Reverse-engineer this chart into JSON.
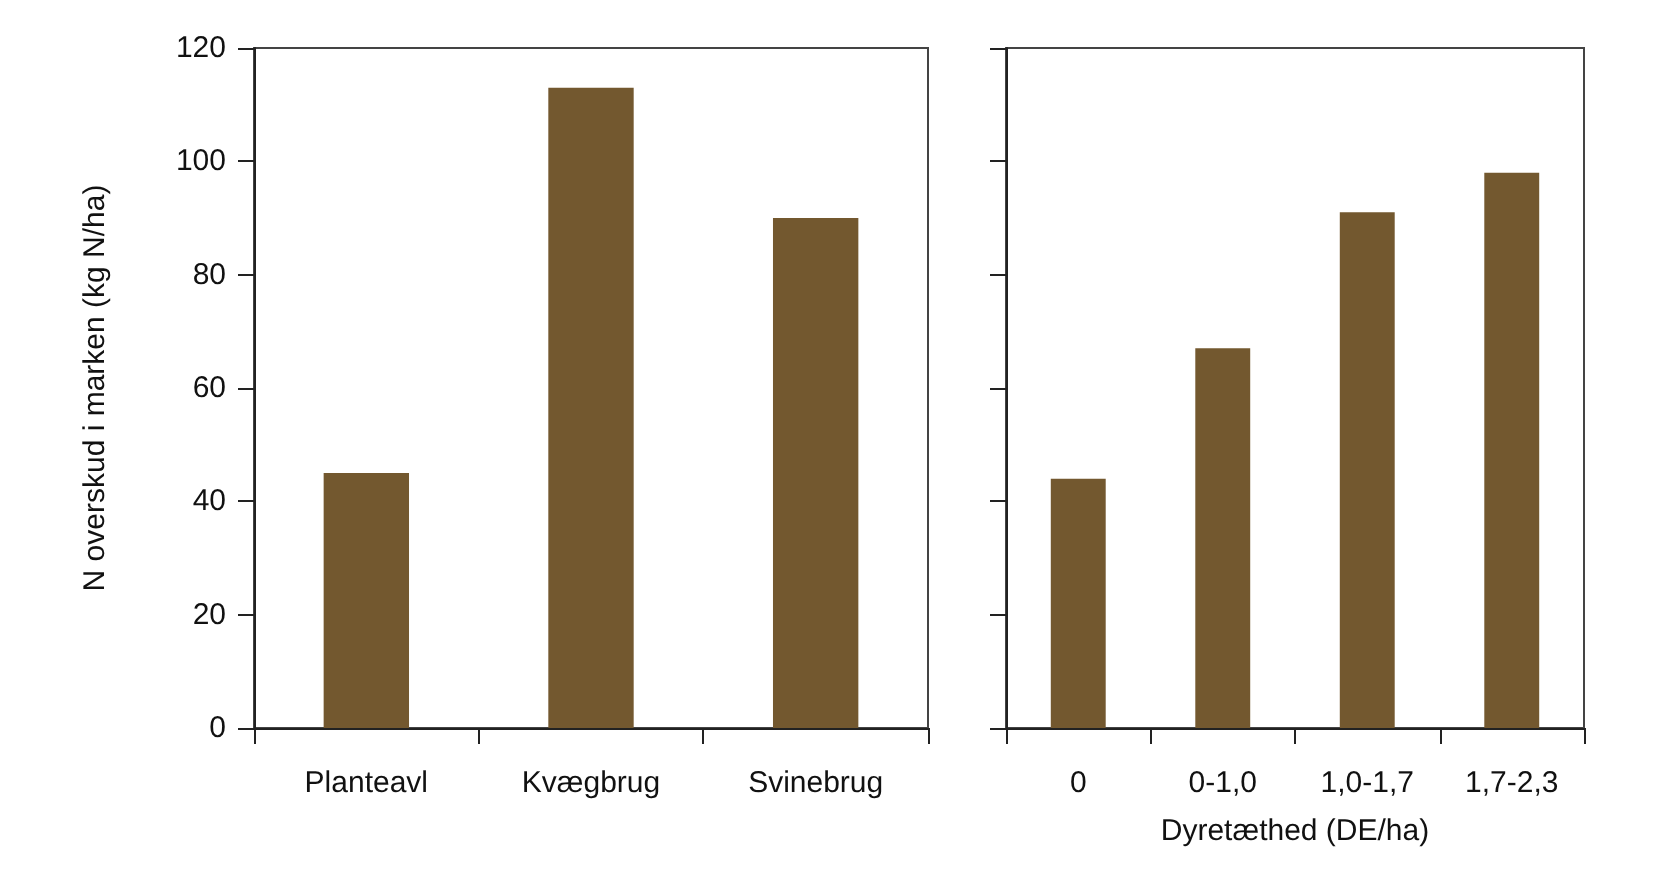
{
  "chart_data": [
    {
      "type": "bar",
      "ylabel": "N overskud i marken (kg N/ha)",
      "categories": [
        "Planteavl",
        "Kvægbrug",
        "Svinebrug"
      ],
      "values": [
        45,
        113,
        90
      ],
      "color": "#73582f",
      "ylim": [
        0,
        120
      ],
      "yticks": [
        0,
        20,
        40,
        60,
        80,
        100,
        120
      ],
      "grid": false
    },
    {
      "type": "bar",
      "xlabel": "Dyretæthed (DE/ha)",
      "categories": [
        "0",
        "0-1,0",
        "1,0-1,7",
        "1,7-2,3"
      ],
      "values": [
        44,
        67,
        91,
        98
      ],
      "color": "#73582f",
      "ylim": [
        0,
        120
      ],
      "yticks": [
        0,
        20,
        40,
        60,
        80,
        100,
        120
      ],
      "grid": false,
      "tick_labels": "x"
    }
  ]
}
